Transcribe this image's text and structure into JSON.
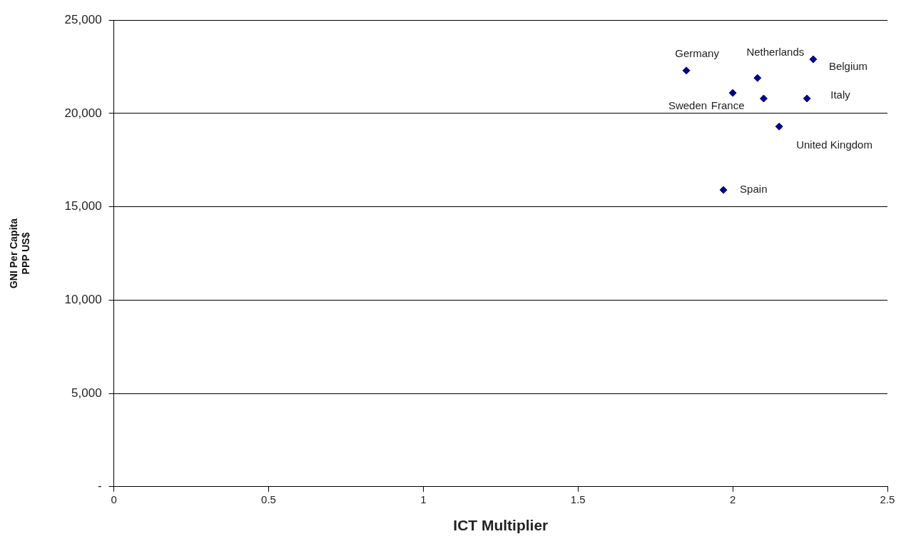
{
  "chart_data": {
    "type": "scatter",
    "xlabel": "ICT Multiplier",
    "ylabel": "GNI Per Capita\nPPP US$",
    "x": [
      1.85,
      2.08,
      2.26,
      2.0,
      2.1,
      2.24,
      2.15,
      1.97
    ],
    "values": [
      22300,
      21900,
      22900,
      21100,
      20800,
      20800,
      19300,
      15900
    ],
    "color": "#000080",
    "marker": "diamond",
    "xlim": [
      0,
      2.5
    ],
    "xticks": [
      0,
      0.5,
      1,
      1.5,
      2,
      2.5
    ],
    "ylim": [
      0,
      25000
    ],
    "yticks": [
      {
        "value": 0,
        "label": "-"
      },
      {
        "value": 5000,
        "label": "5,000"
      },
      {
        "value": 10000,
        "label": "10,000"
      },
      {
        "value": 15000,
        "label": "15,000"
      },
      {
        "value": 20000,
        "label": "20,000"
      },
      {
        "value": 25000,
        "label": "25,000"
      }
    ],
    "grid": "y",
    "legend": false,
    "annotations": [
      {
        "text": "Germany",
        "x": 1.85,
        "y": 22300
      },
      {
        "text": "Netherlands",
        "x": 2.08,
        "y": 21900
      },
      {
        "text": "Belgium",
        "x": 2.26,
        "y": 22900
      },
      {
        "text": "Sweden",
        "x": 2.0,
        "y": 21100
      },
      {
        "text": "France",
        "x": 2.1,
        "y": 20800
      },
      {
        "text": "Italy",
        "x": 2.24,
        "y": 20800
      },
      {
        "text": "United Kingdom",
        "x": 2.15,
        "y": 19300
      },
      {
        "text": "Spain",
        "x": 1.97,
        "y": 15900
      }
    ]
  }
}
